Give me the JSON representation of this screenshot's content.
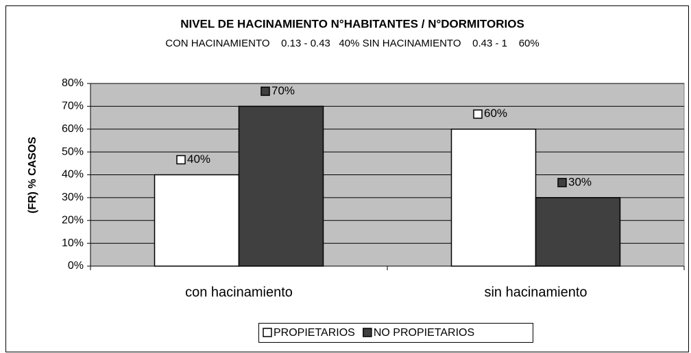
{
  "chart_data": {
    "type": "bar",
    "title": "NIVEL DE HACINAMIENTO N°HABITANTES / N°DORMITORIOS",
    "subtitle": "CON HACINAMIENTO    0.13 - 0.43   40% SIN HACINAMIENTO    0.43 - 1    60%",
    "y_label": "(FR) % CASOS",
    "categories": [
      "con hacinamiento",
      "sin hacinamiento"
    ],
    "series": [
      {
        "name": "PROPIETARIOS",
        "color": "#ffffff",
        "values": [
          40,
          60
        ],
        "value_labels": [
          "40%",
          "60%"
        ]
      },
      {
        "name": "NO PROPIETARIOS",
        "color": "#404040",
        "values": [
          70,
          30
        ],
        "value_labels": [
          "70%",
          "30%"
        ]
      }
    ],
    "ylim": [
      0,
      80
    ],
    "yticks": [
      {
        "value": 0,
        "label": "0%"
      },
      {
        "value": 10,
        "label": "10%"
      },
      {
        "value": 20,
        "label": "20%"
      },
      {
        "value": 30,
        "label": "30%"
      },
      {
        "value": 40,
        "label": "40%"
      },
      {
        "value": 50,
        "label": "50%"
      },
      {
        "value": 60,
        "label": "60%"
      },
      {
        "value": 70,
        "label": "70%"
      },
      {
        "value": 80,
        "label": "80%"
      }
    ],
    "grid": true,
    "plot_background": "#c0c0c0",
    "legend": "bottom"
  }
}
